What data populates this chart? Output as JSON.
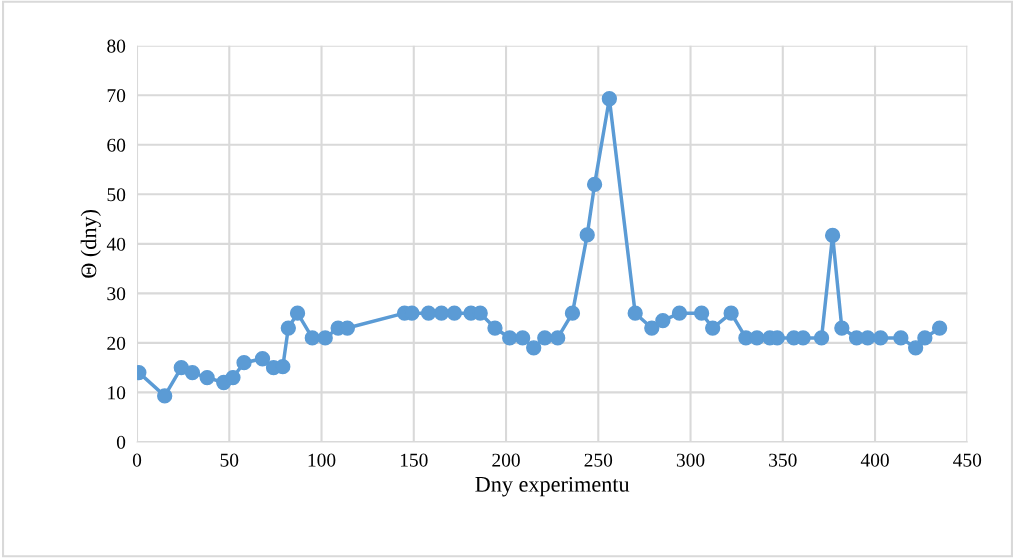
{
  "chart_data": {
    "type": "line",
    "xlabel": "Dny experimentu",
    "ylabel": "Θ (dny)",
    "x": [
      1,
      15,
      24,
      30,
      38,
      47,
      52,
      58,
      68,
      74,
      79,
      82,
      87,
      95,
      102,
      109,
      114,
      145,
      149,
      158,
      165,
      172,
      181,
      186,
      194,
      202,
      209,
      215,
      221,
      228,
      236,
      244,
      248,
      256,
      270,
      279,
      285,
      294,
      306,
      312,
      322,
      330,
      336,
      343,
      347,
      356,
      361,
      371,
      377,
      382,
      390,
      396,
      403,
      414,
      422,
      427,
      435
    ],
    "series": [
      {
        "color": "#5b9bd5",
        "values": [
          14,
          9.3,
          15,
          14,
          13,
          12,
          13,
          16,
          16.8,
          15,
          15.2,
          23,
          26,
          21,
          21,
          23,
          23,
          26,
          26,
          26,
          26,
          26,
          26,
          26,
          23,
          21,
          21,
          19,
          21,
          21,
          26,
          41.8,
          52,
          69.3,
          26,
          23,
          24.5,
          26,
          26,
          23,
          26,
          21,
          21,
          21,
          21,
          21,
          21,
          21,
          41.7,
          23,
          21,
          21,
          21,
          21,
          19,
          21,
          23
        ]
      }
    ],
    "xlim": [
      0,
      450
    ],
    "xticks": [
      0,
      50,
      100,
      150,
      200,
      250,
      300,
      350,
      400,
      450
    ],
    "ylim": [
      0,
      80
    ],
    "yticks": [
      0,
      10,
      20,
      30,
      40,
      50,
      60,
      70,
      80
    ],
    "grid": true,
    "marker": "circle",
    "line_style": "solid"
  }
}
